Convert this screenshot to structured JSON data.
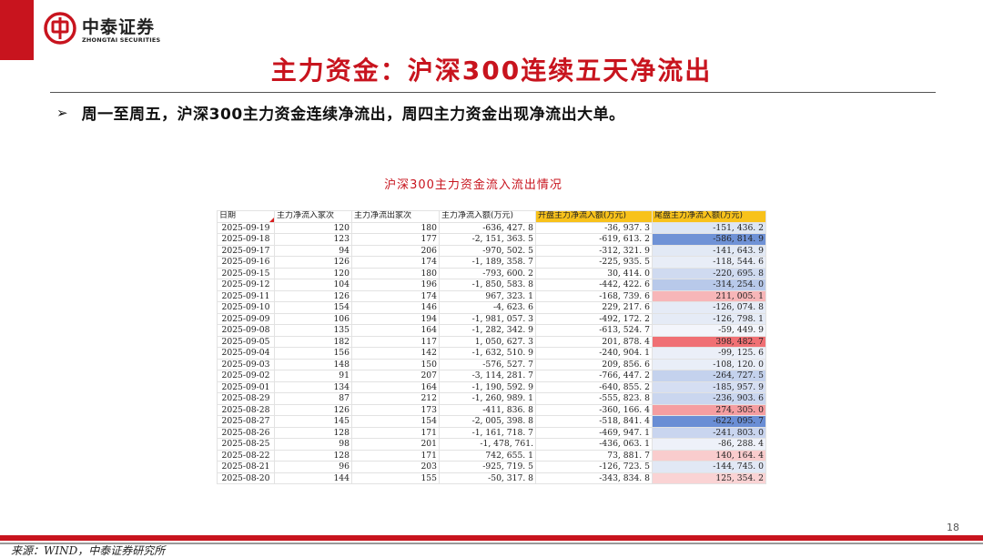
{
  "brand": {
    "name_cn": "中泰证券",
    "name_en": "ZHONGTAI SECURITIES",
    "color": "#c8141e"
  },
  "slide": {
    "title": "主力资金：沪深300连续五天净流出",
    "bullet": "周一至周五，沪深300主力资金连续净流出，周四主力资金出现净流出大单。",
    "bullet_icon": "arrow-right-icon",
    "page_number": "18",
    "source": "来源：WIND，中泰证券研究所"
  },
  "table": {
    "caption": "沪深300主力资金流入流出情况",
    "headers": [
      "日期",
      "主力净流入家次",
      "主力净流出家次",
      "主力净流入额(万元)",
      "开盘主力净流入额(万元)",
      "尾盘主力净流入额(万元)"
    ],
    "highlight_header_color": "#f8c21b",
    "rows": [
      [
        "2025-09-19",
        "120",
        "180",
        "-636, 427. 8",
        "-36, 937. 3",
        "-151, 436. 2",
        "#dde6f4"
      ],
      [
        "2025-09-18",
        "123",
        "177",
        "-2, 151, 363. 5",
        "-619, 613. 2",
        "-586, 814. 9",
        "#6f92d6"
      ],
      [
        "2025-09-17",
        "94",
        "206",
        "-970, 502. 5",
        "-312, 321. 9",
        "-141, 643. 9",
        "#e2e9f5"
      ],
      [
        "2025-09-16",
        "126",
        "174",
        "-1, 189, 358. 7",
        "-225, 935. 5",
        "-118, 544. 6",
        "#e8edf7"
      ],
      [
        "2025-09-15",
        "120",
        "180",
        "-793, 600. 2",
        "30, 414. 0",
        "-220, 695. 8",
        "#cfdaf0"
      ],
      [
        "2025-09-12",
        "104",
        "196",
        "-1, 850, 583. 8",
        "-442, 422. 6",
        "-314, 254. 0",
        "#b8c9ea"
      ],
      [
        "2025-09-11",
        "126",
        "174",
        "967, 323. 1",
        "-168, 739. 6",
        "211, 005. 1",
        "#f7b6b8"
      ],
      [
        "2025-09-10",
        "154",
        "146",
        "-4, 623. 6",
        "229, 217. 6",
        "-126, 074. 8",
        "#e5ebf6"
      ],
      [
        "2025-09-09",
        "106",
        "194",
        "-1, 981, 057. 3",
        "-492, 172. 2",
        "-126, 798. 1",
        "#e5ebf6"
      ],
      [
        "2025-09-08",
        "135",
        "164",
        "-1, 282, 342. 9",
        "-613, 524. 7",
        "-59, 449. 9",
        "#f3f5fb"
      ],
      [
        "2025-09-05",
        "182",
        "117",
        "1, 050, 627. 3",
        "201, 878. 4",
        "398, 482. 7",
        "#f07074"
      ],
      [
        "2025-09-04",
        "156",
        "142",
        "-1, 632, 510. 9",
        "-240, 904. 1",
        "-99, 125. 6",
        "#ebeff8"
      ],
      [
        "2025-09-03",
        "148",
        "150",
        "-576, 527. 7",
        "209, 856. 6",
        "-108, 120. 0",
        "#e9eef8"
      ],
      [
        "2025-09-02",
        "91",
        "207",
        "-3, 114, 281. 7",
        "-766, 447. 2",
        "-264, 727. 5",
        "#c4d2ed"
      ],
      [
        "2025-09-01",
        "134",
        "164",
        "-1, 190, 592. 9",
        "-640, 855. 2",
        "-185, 957. 9",
        "#d5def2"
      ],
      [
        "2025-08-29",
        "87",
        "212",
        "-1, 260, 989. 1",
        "-555, 823. 8",
        "-236, 903. 6",
        "#cad6ef"
      ],
      [
        "2025-08-28",
        "126",
        "173",
        "-411, 836. 8",
        "-360, 166. 4",
        "274, 305. 0",
        "#f59ea1"
      ],
      [
        "2025-08-27",
        "145",
        "154",
        "-2, 005, 398. 8",
        "-518, 841. 4",
        "-622, 095. 7",
        "#6a8ed5"
      ],
      [
        "2025-08-26",
        "128",
        "171",
        "-1, 161, 718. 7",
        "-469, 947. 1",
        "-241, 803. 0",
        "#c9d5ef"
      ],
      [
        "2025-08-25",
        "98",
        "201",
        "-1, 478, 761.",
        "-436, 063. 1",
        "-86, 288. 4",
        "#eef1f9"
      ],
      [
        "2025-08-22",
        "128",
        "171",
        "742, 655. 1",
        "73, 881. 7",
        "140, 164. 4",
        "#f9cccd"
      ],
      [
        "2025-08-21",
        "96",
        "203",
        "-925, 719. 5",
        "-126, 723. 5",
        "-144, 745. 0",
        "#e1e8f5"
      ],
      [
        "2025-08-20",
        "144",
        "155",
        "-50, 317. 8",
        "-343, 834. 8",
        "125, 354. 2",
        "#fad3d4"
      ]
    ]
  }
}
